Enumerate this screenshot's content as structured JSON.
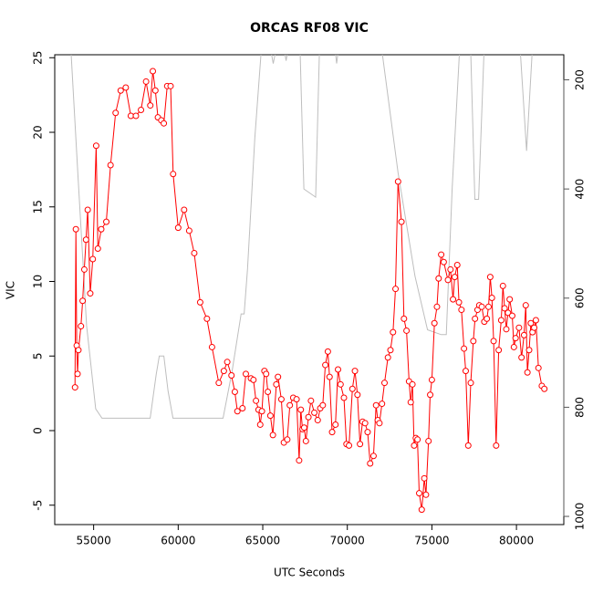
{
  "chart_data": {
    "type": "line",
    "title": "ORCAS RF08 VIC",
    "xlabel": "UTC Seconds",
    "ylabel": "VIC",
    "xlim": [
      52700,
      82800
    ],
    "xticks": [
      55000,
      60000,
      65000,
      70000,
      75000,
      80000
    ],
    "ylim": [
      -6.3,
      25.2
    ],
    "yticks": [
      -5,
      0,
      5,
      10,
      15,
      20,
      25
    ],
    "y2lim": [
      1015,
      154
    ],
    "y2ticks": [
      200,
      400,
      600,
      800,
      1000
    ],
    "series": [
      {
        "color": "#bebebe",
        "axis": "y2",
        "markers": false,
        "x": [
          53668,
          54044,
          54580,
          55120,
          55496,
          58345,
          58700,
          58883,
          59151,
          59400,
          59690,
          62650,
          63180,
          63720,
          63900,
          64100,
          64530,
          64900,
          65500,
          65620,
          65750,
          66300,
          66380,
          66460,
          67210,
          67430,
          68130,
          68350,
          69300,
          69370,
          69450,
          72060,
          73000,
          74000,
          74740,
          75550,
          75850,
          76200,
          76630,
          77300,
          77540,
          77760,
          78080,
          80230,
          80600,
          80930,
          81700
        ],
        "values": [
          150,
          359,
          650,
          803,
          820,
          820,
          740,
          706,
          706,
          770,
          820,
          820,
          735,
          629,
          629,
          547,
          307,
          150,
          150,
          170,
          150,
          150,
          165,
          150,
          150,
          400,
          415,
          150,
          150,
          170,
          150,
          150,
          370,
          560,
          658,
          667,
          667,
          400,
          150,
          150,
          419,
          419,
          150,
          150,
          330,
          150,
          150
        ]
      },
      {
        "color": "#ff0000",
        "markers": true,
        "x": [
          53900,
          53950,
          54000,
          54050,
          54100,
          54250,
          54350,
          54450,
          54550,
          54650,
          54800,
          54950,
          55150,
          55250,
          55450,
          55750,
          56000,
          56300,
          56600,
          56900,
          57200,
          57500,
          57800,
          58100,
          58350,
          58500,
          58650,
          58800,
          59000,
          59150,
          59350,
          59550,
          59700,
          60000,
          60350,
          60650,
          60950,
          61300,
          61700,
          62000,
          62400,
          62700,
          62900,
          63150,
          63350,
          63500,
          63800,
          64000,
          64300,
          64450,
          64600,
          64750,
          64850,
          64950,
          65100,
          65200,
          65300,
          65450,
          65600,
          65800,
          65900,
          66100,
          66250,
          66450,
          66600,
          66800,
          67000,
          67150,
          67250,
          67350,
          67450,
          67550,
          67700,
          67850,
          68050,
          68250,
          68400,
          68550,
          68700,
          68850,
          68950,
          69100,
          69300,
          69450,
          69600,
          69800,
          69950,
          70100,
          70300,
          70450,
          70600,
          70750,
          70900,
          71050,
          71200,
          71350,
          71550,
          71700,
          71800,
          71900,
          72050,
          72200,
          72400,
          72550,
          72700,
          72850,
          73000,
          73200,
          73350,
          73500,
          73650,
          73750,
          73850,
          73950,
          74050,
          74150,
          74250,
          74400,
          74550,
          74650,
          74800,
          74900,
          75000,
          75150,
          75300,
          75400,
          75550,
          75700,
          75950,
          76100,
          76250,
          76350,
          76500,
          76600,
          76750,
          76900,
          77000,
          77150,
          77300,
          77450,
          77550,
          77700,
          77800,
          77950,
          78100,
          78250,
          78350,
          78450,
          78550,
          78650,
          78800,
          78950,
          79100,
          79200,
          79300,
          79400,
          79500,
          79600,
          79750,
          79850,
          79950,
          80150,
          80300,
          80450,
          80550,
          80650,
          80750,
          80850,
          80950,
          81050,
          81150,
          81300,
          81500,
          81650
        ],
        "values": [
          2.9,
          13.5,
          5.7,
          3.8,
          5.4,
          7.0,
          8.7,
          10.8,
          12.8,
          14.8,
          9.2,
          11.5,
          19.1,
          12.2,
          13.5,
          14.0,
          17.8,
          21.3,
          22.8,
          23.0,
          21.1,
          21.1,
          21.5,
          23.4,
          21.8,
          24.1,
          22.8,
          21.0,
          20.8,
          20.6,
          23.1,
          23.1,
          17.2,
          13.6,
          14.8,
          13.4,
          11.9,
          8.6,
          7.5,
          5.6,
          3.2,
          4.0,
          4.6,
          3.7,
          2.6,
          1.3,
          1.5,
          3.8,
          3.5,
          3.4,
          2.0,
          1.4,
          0.4,
          1.3,
          4.0,
          3.8,
          2.6,
          1.0,
          -0.3,
          3.1,
          3.6,
          2.1,
          -0.8,
          -0.6,
          1.7,
          2.2,
          2.1,
          -2.0,
          1.4,
          0.1,
          0.2,
          -0.7,
          0.9,
          2.0,
          1.2,
          0.7,
          1.5,
          1.7,
          4.4,
          5.3,
          3.6,
          -0.1,
          0.4,
          4.1,
          3.1,
          2.2,
          -0.9,
          -1.0,
          2.8,
          4.0,
          2.4,
          -0.9,
          0.6,
          0.5,
          -0.1,
          -2.2,
          -1.7,
          1.7,
          0.7,
          0.5,
          1.8,
          3.2,
          4.9,
          5.4,
          6.6,
          9.5,
          16.7,
          14.0,
          7.5,
          6.7,
          3.3,
          1.9,
          3.1,
          -1.0,
          -0.5,
          -0.6,
          -4.2,
          -5.3,
          -3.2,
          -4.3,
          -0.7,
          2.4,
          3.4,
          7.2,
          8.3,
          10.2,
          11.8,
          11.3,
          10.1,
          10.8,
          8.8,
          10.3,
          11.1,
          8.6,
          8.1,
          5.5,
          4.0,
          -1.0,
          3.2,
          6.0,
          7.5,
          8.1,
          8.4,
          8.3,
          7.3,
          7.5,
          8.3,
          10.3,
          8.9,
          6.0,
          -1.0,
          5.4,
          7.4,
          9.7,
          8.2,
          6.8,
          7.9,
          8.8,
          7.7,
          5.6,
          6.2,
          6.9,
          4.9,
          6.4,
          8.4,
          3.9,
          5.4,
          7.2,
          6.6,
          6.9,
          7.4,
          4.2,
          3.0,
          2.8
        ]
      }
    ]
  }
}
